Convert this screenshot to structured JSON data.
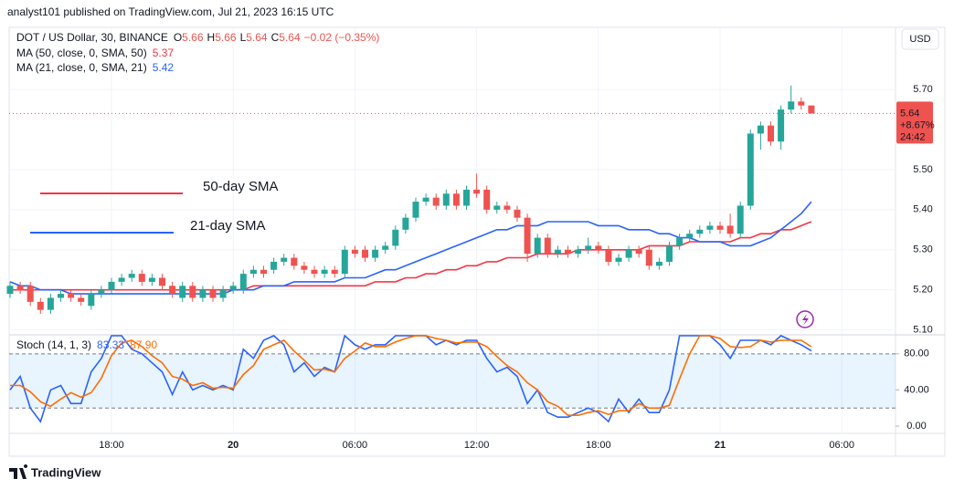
{
  "header": {
    "published": "analyst101 published on TradingView.com, Jul 21, 2023 16:15 UTC"
  },
  "chart_data": [
    {
      "type": "candlestick",
      "title": "DOT / US Dollar, 30, BINANCE",
      "ohlc_labels": [
        "O",
        "H",
        "L",
        "C"
      ],
      "change_label": "−0.02 (−0.35%)",
      "open": [
        5.19,
        5.21,
        5.21,
        5.17,
        5.15,
        5.18,
        5.19,
        5.18,
        5.16,
        5.19,
        5.2,
        5.22,
        5.23,
        5.24,
        5.22,
        5.23,
        5.21,
        5.18,
        5.21,
        5.18,
        5.2,
        5.18,
        5.2,
        5.2,
        5.24,
        5.25,
        5.25,
        5.27,
        5.28,
        5.26,
        5.25,
        5.24,
        5.25,
        5.24,
        5.3,
        5.3,
        5.28,
        5.3,
        5.31,
        5.35,
        5.38,
        5.42,
        5.43,
        5.41,
        5.44,
        5.41,
        5.45,
        5.45,
        5.4,
        5.41,
        5.4,
        5.38,
        5.29,
        5.33,
        5.29,
        5.3,
        5.29,
        5.3,
        5.31,
        5.3,
        5.27,
        5.28,
        5.3,
        5.3,
        5.26,
        5.27,
        5.31,
        5.33,
        5.34,
        5.35,
        5.36,
        5.36,
        5.34,
        5.41,
        5.59,
        5.61,
        5.57,
        5.65,
        5.67,
        5.66
      ],
      "high": [
        5.22,
        5.22,
        5.22,
        5.18,
        5.19,
        5.2,
        5.2,
        5.19,
        5.2,
        5.21,
        5.23,
        5.24,
        5.25,
        5.25,
        5.24,
        5.24,
        5.22,
        5.22,
        5.22,
        5.21,
        5.21,
        5.21,
        5.22,
        5.25,
        5.26,
        5.26,
        5.28,
        5.29,
        5.29,
        5.27,
        5.26,
        5.26,
        5.26,
        5.31,
        5.31,
        5.31,
        5.31,
        5.32,
        5.36,
        5.39,
        5.43,
        5.44,
        5.44,
        5.45,
        5.45,
        5.46,
        5.49,
        5.46,
        5.42,
        5.42,
        5.41,
        5.39,
        5.34,
        5.34,
        5.31,
        5.31,
        5.31,
        5.33,
        5.32,
        5.31,
        5.29,
        5.31,
        5.31,
        5.31,
        5.28,
        5.32,
        5.34,
        5.35,
        5.36,
        5.37,
        5.37,
        5.39,
        5.42,
        5.6,
        5.62,
        5.62,
        5.66,
        5.71,
        5.68,
        5.66
      ],
      "low": [
        5.18,
        5.19,
        5.16,
        5.14,
        5.14,
        5.17,
        5.17,
        5.16,
        5.15,
        5.18,
        5.19,
        5.21,
        5.22,
        5.21,
        5.21,
        5.2,
        5.18,
        5.17,
        5.17,
        5.17,
        5.17,
        5.17,
        5.19,
        5.19,
        5.23,
        5.23,
        5.24,
        5.26,
        5.25,
        5.24,
        5.23,
        5.23,
        5.23,
        5.23,
        5.28,
        5.27,
        5.27,
        5.29,
        5.3,
        5.34,
        5.37,
        5.41,
        5.4,
        5.4,
        5.4,
        5.4,
        5.43,
        5.39,
        5.39,
        5.39,
        5.37,
        5.27,
        5.28,
        5.28,
        5.28,
        5.28,
        5.28,
        5.29,
        5.29,
        5.26,
        5.26,
        5.27,
        5.28,
        5.25,
        5.25,
        5.26,
        5.3,
        5.32,
        5.33,
        5.34,
        5.34,
        5.33,
        5.33,
        5.4,
        5.55,
        5.56,
        5.55,
        5.64,
        5.65,
        5.64
      ],
      "close": [
        5.21,
        5.2,
        5.17,
        5.15,
        5.18,
        5.19,
        5.18,
        5.17,
        5.19,
        5.2,
        5.22,
        5.23,
        5.24,
        5.22,
        5.23,
        5.21,
        5.19,
        5.21,
        5.18,
        5.2,
        5.18,
        5.2,
        5.21,
        5.24,
        5.25,
        5.24,
        5.27,
        5.28,
        5.26,
        5.25,
        5.24,
        5.25,
        5.24,
        5.3,
        5.29,
        5.28,
        5.3,
        5.31,
        5.35,
        5.38,
        5.42,
        5.43,
        5.41,
        5.44,
        5.41,
        5.45,
        5.44,
        5.4,
        5.41,
        5.4,
        5.38,
        5.29,
        5.33,
        5.29,
        5.3,
        5.29,
        5.3,
        5.31,
        5.3,
        5.27,
        5.28,
        5.3,
        5.29,
        5.26,
        5.27,
        5.31,
        5.33,
        5.34,
        5.35,
        5.36,
        5.35,
        5.34,
        5.41,
        5.59,
        5.61,
        5.57,
        5.65,
        5.67,
        5.66,
        5.64
      ],
      "up_color": "#26a69a",
      "down_color": "#ef5350",
      "series": [
        {
          "name": "MA (50, close, 0, SMA, 50)",
          "color": "#f23645",
          "values": [
            5.2,
            5.2,
            5.2,
            5.2,
            5.2,
            5.2,
            5.2,
            5.2,
            5.2,
            5.2,
            5.2,
            5.2,
            5.2,
            5.2,
            5.2,
            5.2,
            5.2,
            5.2,
            5.2,
            5.2,
            5.2,
            5.2,
            5.2,
            5.2,
            5.21,
            5.21,
            5.21,
            5.21,
            5.21,
            5.21,
            5.21,
            5.21,
            5.21,
            5.21,
            5.21,
            5.21,
            5.22,
            5.22,
            5.22,
            5.23,
            5.23,
            5.24,
            5.24,
            5.25,
            5.25,
            5.26,
            5.26,
            5.27,
            5.27,
            5.28,
            5.28,
            5.28,
            5.29,
            5.29,
            5.29,
            5.29,
            5.3,
            5.3,
            5.3,
            5.3,
            5.3,
            5.3,
            5.3,
            5.31,
            5.31,
            5.31,
            5.31,
            5.32,
            5.32,
            5.32,
            5.32,
            5.32,
            5.33,
            5.33,
            5.34,
            5.34,
            5.35,
            5.35,
            5.36,
            5.37
          ]
        },
        {
          "name": "MA (21, close, 0, SMA, 21)",
          "color": "#2962ff",
          "values": [
            5.22,
            5.21,
            5.21,
            5.2,
            5.2,
            5.2,
            5.19,
            5.19,
            5.19,
            5.19,
            5.19,
            5.19,
            5.19,
            5.19,
            5.19,
            5.19,
            5.19,
            5.19,
            5.19,
            5.19,
            5.19,
            5.19,
            5.2,
            5.2,
            5.2,
            5.21,
            5.21,
            5.21,
            5.22,
            5.22,
            5.22,
            5.22,
            5.22,
            5.23,
            5.23,
            5.23,
            5.24,
            5.25,
            5.25,
            5.26,
            5.27,
            5.28,
            5.29,
            5.3,
            5.31,
            5.32,
            5.33,
            5.34,
            5.35,
            5.35,
            5.36,
            5.36,
            5.36,
            5.37,
            5.37,
            5.37,
            5.37,
            5.37,
            5.36,
            5.36,
            5.36,
            5.35,
            5.35,
            5.35,
            5.34,
            5.34,
            5.33,
            5.33,
            5.32,
            5.32,
            5.32,
            5.31,
            5.31,
            5.31,
            5.32,
            5.33,
            5.35,
            5.37,
            5.39,
            5.42
          ]
        }
      ],
      "ylim": [
        5.09,
        5.855
      ],
      "yticks": [
        {
          "value": 5.1,
          "label": "5.10"
        },
        {
          "value": 5.2,
          "label": "5.20"
        },
        {
          "value": 5.3,
          "label": "5.30"
        },
        {
          "value": 5.4,
          "label": "5.40"
        },
        {
          "value": 5.5,
          "label": "5.50"
        },
        {
          "value": 5.7,
          "label": "5.70"
        }
      ],
      "xticks": [
        {
          "value": 10,
          "label": "18:00"
        },
        {
          "value": 22,
          "label": "20"
        },
        {
          "value": 34,
          "label": "06:00"
        },
        {
          "value": 46,
          "label": "12:00"
        },
        {
          "value": 58,
          "label": "18:00"
        },
        {
          "value": 70,
          "label": "21"
        },
        {
          "value": 82,
          "label": "06:00"
        }
      ],
      "grid": true,
      "last_price_tag": {
        "change": "+8.67%",
        "countdown": "24:42"
      },
      "currency": "USD",
      "annotations": [
        {
          "text": "50-day SMA",
          "color": "#f23645"
        },
        {
          "text": "21-day SMA",
          "color": "#2962ff"
        }
      ]
    },
    {
      "type": "line",
      "title": "Stoch (14, 1, 3)",
      "series": [
        {
          "color": "#2962ff",
          "values": [
            40,
            55,
            20,
            5,
            40,
            45,
            25,
            25,
            60,
            75,
            100,
            100,
            85,
            80,
            70,
            60,
            35,
            60,
            40,
            45,
            40,
            45,
            40,
            85,
            75,
            95,
            100,
            90,
            60,
            70,
            55,
            65,
            60,
            100,
            90,
            85,
            90,
            90,
            100,
            100,
            100,
            100,
            90,
            95,
            90,
            95,
            95,
            75,
            60,
            65,
            55,
            25,
            40,
            15,
            10,
            10,
            15,
            20,
            15,
            5,
            30,
            15,
            30,
            15,
            15,
            40,
            100,
            100,
            100,
            100,
            90,
            75,
            95,
            95,
            95,
            90,
            100,
            95,
            90,
            83.33
          ]
        },
        {
          "color": "#ff6d00",
          "values": [
            45,
            45,
            38,
            27,
            22,
            30,
            37,
            32,
            37,
            53,
            78,
            92,
            95,
            88,
            78,
            70,
            55,
            52,
            45,
            48,
            42,
            43,
            42,
            57,
            67,
            85,
            90,
            95,
            83,
            73,
            62,
            63,
            60,
            75,
            83,
            92,
            88,
            88,
            93,
            97,
            100,
            100,
            97,
            95,
            92,
            93,
            93,
            88,
            77,
            67,
            60,
            48,
            40,
            27,
            22,
            12,
            12,
            15,
            17,
            13,
            17,
            17,
            25,
            20,
            20,
            23,
            52,
            80,
            100,
            100,
            97,
            88,
            87,
            88,
            95,
            93,
            95,
            95,
            95,
            87.9
          ],
          "last_label": "87.90"
        }
      ],
      "ylim": [
        -8,
        100
      ],
      "yticks": [
        {
          "value": 0,
          "label": "0.00"
        },
        {
          "value": 40,
          "label": "40.00"
        },
        {
          "value": 80,
          "label": "80.00"
        }
      ],
      "band": [
        20,
        80
      ]
    }
  ],
  "footer": {
    "brand": "TradingView"
  }
}
